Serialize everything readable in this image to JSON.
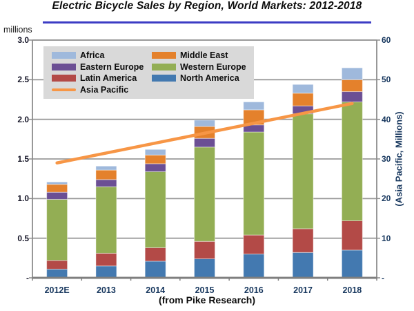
{
  "chart_data": {
    "type": "bar",
    "subtype": "stacked-bar-with-secondary-axis-line",
    "title": "Electric Bicycle Sales by Region, World Markets: 2012-2018",
    "caption": "(from Pike Research)",
    "categories": [
      "2012E",
      "2013",
      "2014",
      "2015",
      "2016",
      "2017",
      "2018"
    ],
    "series": [
      {
        "name": "North America",
        "type": "bar",
        "color": "#4379B0",
        "values": [
          0.11,
          0.15,
          0.21,
          0.24,
          0.3,
          0.32,
          0.35
        ]
      },
      {
        "name": "Latin America",
        "type": "bar",
        "color": "#B34A47",
        "values": [
          0.11,
          0.16,
          0.17,
          0.22,
          0.24,
          0.3,
          0.37
        ]
      },
      {
        "name": "Western Europe",
        "type": "bar",
        "color": "#93AE54",
        "values": [
          0.77,
          0.84,
          0.96,
          1.19,
          1.3,
          1.45,
          1.5
        ]
      },
      {
        "name": "Eastern Europe",
        "type": "bar",
        "color": "#6B4F94",
        "values": [
          0.09,
          0.09,
          0.1,
          0.11,
          0.09,
          0.1,
          0.13
        ]
      },
      {
        "name": "Middle East",
        "type": "bar",
        "color": "#E4812C",
        "values": [
          0.1,
          0.12,
          0.11,
          0.15,
          0.19,
          0.16,
          0.15
        ]
      },
      {
        "name": "Africa",
        "type": "bar",
        "color": "#9FB9DC",
        "values": [
          0.03,
          0.05,
          0.07,
          0.08,
          0.1,
          0.11,
          0.15
        ]
      },
      {
        "name": "Asia Pacific",
        "type": "line",
        "axis": "right",
        "color": "#F79646",
        "values": [
          29,
          31.5,
          34,
          36.5,
          39,
          41.5,
          44
        ]
      }
    ],
    "left_axis": {
      "label": "millions",
      "min": 0,
      "max": 3,
      "tick_step": 0.5,
      "tick_labels": [
        "3.0",
        "2.5",
        "2.0",
        "1.5",
        "1.0",
        "0.5",
        "-"
      ]
    },
    "right_axis": {
      "label": "(Asia Pacific, Millions)",
      "min": 0,
      "max": 60,
      "tick_step": 10,
      "tick_labels": [
        "60",
        "50",
        "40",
        "30",
        "20",
        "10",
        "-"
      ]
    },
    "legend": {
      "position": "top-left",
      "items": [
        {
          "label": "Africa",
          "color": "#9FB9DC",
          "marker": "box"
        },
        {
          "label": "Middle East",
          "color": "#E4812C",
          "marker": "box"
        },
        {
          "label": "Eastern Europe",
          "color": "#6B4F94",
          "marker": "box"
        },
        {
          "label": "Western Europe",
          "color": "#93AE54",
          "marker": "box"
        },
        {
          "label": "Latin America",
          "color": "#B34A47",
          "marker": "box"
        },
        {
          "label": "North America",
          "color": "#4379B0",
          "marker": "box"
        },
        {
          "label": "Asia Pacific",
          "color": "#F79646",
          "marker": "line"
        }
      ]
    },
    "grid": true
  },
  "styles": {
    "title_underline_color": "#3C3CC4",
    "grid_color": "#9A9A9A",
    "frame_color": "#8C8C8C",
    "axis_line_color": "#7F7F7F",
    "legend_bg": "#D9D9D9",
    "axis_label_color": "#17375E"
  }
}
